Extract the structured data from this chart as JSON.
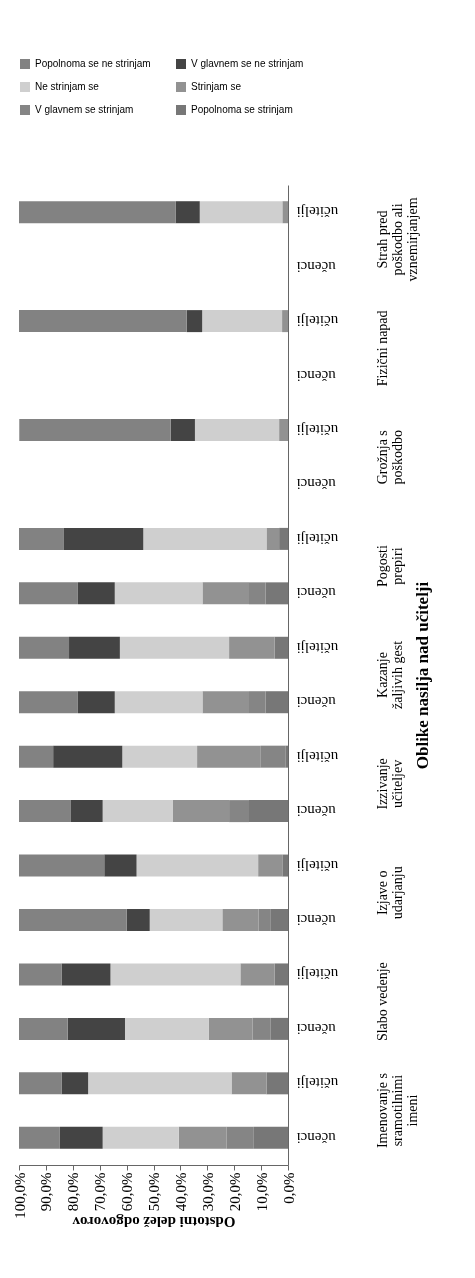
{
  "chart_data": {
    "type": "bar",
    "stacked": true,
    "orientation": "horizontal",
    "xlabel": "Odstotni delež odgovorov",
    "ylabel": "Oblike nasilja nad učitelji",
    "categories": [
      "učitelji",
      "učenci",
      "učitelji",
      "učenci",
      "učitelji",
      "učenci",
      "učitelji",
      "učenci",
      "učitelji",
      "učenci",
      "učitelji",
      "učenci",
      "učitelji",
      "učenci",
      "učitelji",
      "učenci",
      "učitelji",
      "učenci"
    ],
    "series": [
      {
        "name": "Popolnoma se strinjam",
        "color": "#777777",
        "values": [
          0,
          null,
          0,
          null,
          0,
          null,
          3.3,
          8.3,
          5.0,
          8.3,
          1.0,
          14.5,
          2.1,
          6.6,
          5.0,
          6.4,
          8.0,
          12.7
        ]
      },
      {
        "name": "V glavnem se strinjam",
        "color": "#858585",
        "values": [
          0,
          null,
          0,
          null,
          0,
          null,
          0,
          6.2,
          0,
          6.2,
          9.1,
          7.4,
          0,
          4.3,
          0,
          6.8,
          0,
          10.2
        ]
      },
      {
        "name": "Strinjam se",
        "color": "#929292",
        "values": [
          2.1,
          null,
          2.2,
          null,
          3.3,
          null,
          4.7,
          17.3,
          16.9,
          17.3,
          23.7,
          21.0,
          9.0,
          13.5,
          12.7,
          16.3,
          13.0,
          17.7
        ]
      },
      {
        "name": "Ne strinjam se",
        "color": "#cfcfcf",
        "values": [
          30.7,
          null,
          29.7,
          null,
          31.3,
          null,
          45.8,
          32.6,
          40.6,
          32.6,
          27.8,
          26.0,
          45.2,
          27.0,
          48.3,
          31.1,
          53.3,
          28.3
        ]
      },
      {
        "name": "V glavnem se ne strinjam",
        "color": "#444444",
        "values": [
          8.9,
          null,
          5.8,
          null,
          9.0,
          null,
          29.7,
          13.7,
          18.9,
          13.7,
          25.7,
          12.0,
          12.0,
          8.6,
          18.2,
          21.3,
          9.9,
          15.9
        ]
      },
      {
        "name": "Popolnoma se ne strinjam",
        "color": "#828282",
        "values": [
          58.3,
          null,
          62.3,
          null,
          56.3,
          null,
          16.5,
          21.9,
          18.6,
          21.9,
          12.7,
          19.1,
          31.7,
          40.0,
          15.8,
          18.1,
          15.8,
          15.2
        ]
      }
    ],
    "xlim": [
      100,
      0
    ],
    "xticks": [
      {
        "value": 100,
        "label": "100,0%"
      },
      {
        "value": 90,
        "label": "90,0%"
      },
      {
        "value": 80,
        "label": "80,0%"
      },
      {
        "value": 70,
        "label": "70,0%"
      },
      {
        "value": 60,
        "label": "60,0%"
      },
      {
        "value": 50,
        "label": "50,0%"
      },
      {
        "value": 40,
        "label": "40,0%"
      },
      {
        "value": 30,
        "label": "30,0%"
      },
      {
        "value": 20,
        "label": "20,0%"
      },
      {
        "value": 10,
        "label": "10,0%"
      },
      {
        "value": 0,
        "label": "0,0%"
      }
    ],
    "annotations": [
      "Strah pred poškodbo ali vznemirjanjem",
      "Fizični napad",
      "Grožnja s poškodbo",
      "Pogosti prepiri",
      "Kazanje žaljivih gest",
      "Izzivanje učiteljev",
      "Izjave o udarjanju",
      "Slabo vedenje",
      "Imenovanje s sramotilnimi imeni"
    ],
    "grid": false,
    "legend": "top"
  }
}
